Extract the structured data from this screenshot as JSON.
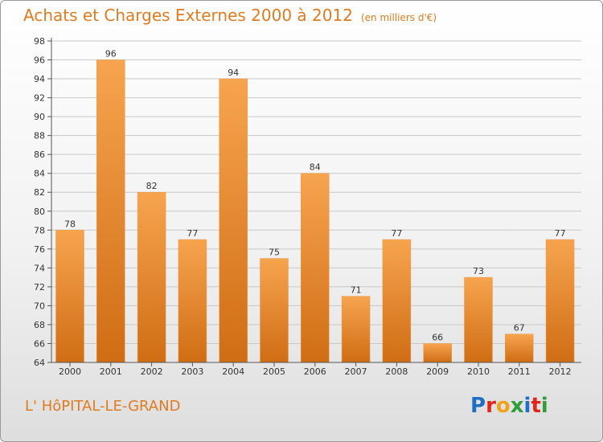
{
  "header": {
    "title": "Achats et Charges Externes 2000 à 2012",
    "unit": "(en milliers d'€)"
  },
  "footer": {
    "commune": "L' HôPITAL-LE-GRAND",
    "brand": "Proxiti",
    "brand_colors": [
      "#1f6fc4",
      "#e2241a",
      "#f0a31a",
      "#2f9e3a",
      "#1f6fc4",
      "#e2241a",
      "#2f9e3a"
    ]
  },
  "colors": {
    "bar_light": "#f7a44f",
    "bar_dark": "#cf6d14",
    "accent": "#e07b20",
    "grid": "#c8c8c8",
    "axis": "#555555"
  },
  "chart_data": {
    "type": "bar",
    "categories": [
      "2000",
      "2001",
      "2002",
      "2003",
      "2004",
      "2005",
      "2006",
      "2007",
      "2008",
      "2009",
      "2010",
      "2011",
      "2012"
    ],
    "values": [
      78,
      96,
      82,
      77,
      94,
      75,
      84,
      71,
      77,
      66,
      73,
      67,
      77
    ],
    "yticks": [
      64,
      66,
      68,
      70,
      72,
      74,
      76,
      78,
      80,
      82,
      84,
      86,
      88,
      90,
      92,
      94,
      96,
      98
    ],
    "ylim": [
      64,
      98
    ],
    "grid": true,
    "title": "Achats et Charges Externes 2000 à 2012",
    "xlabel": "",
    "ylabel": ""
  }
}
